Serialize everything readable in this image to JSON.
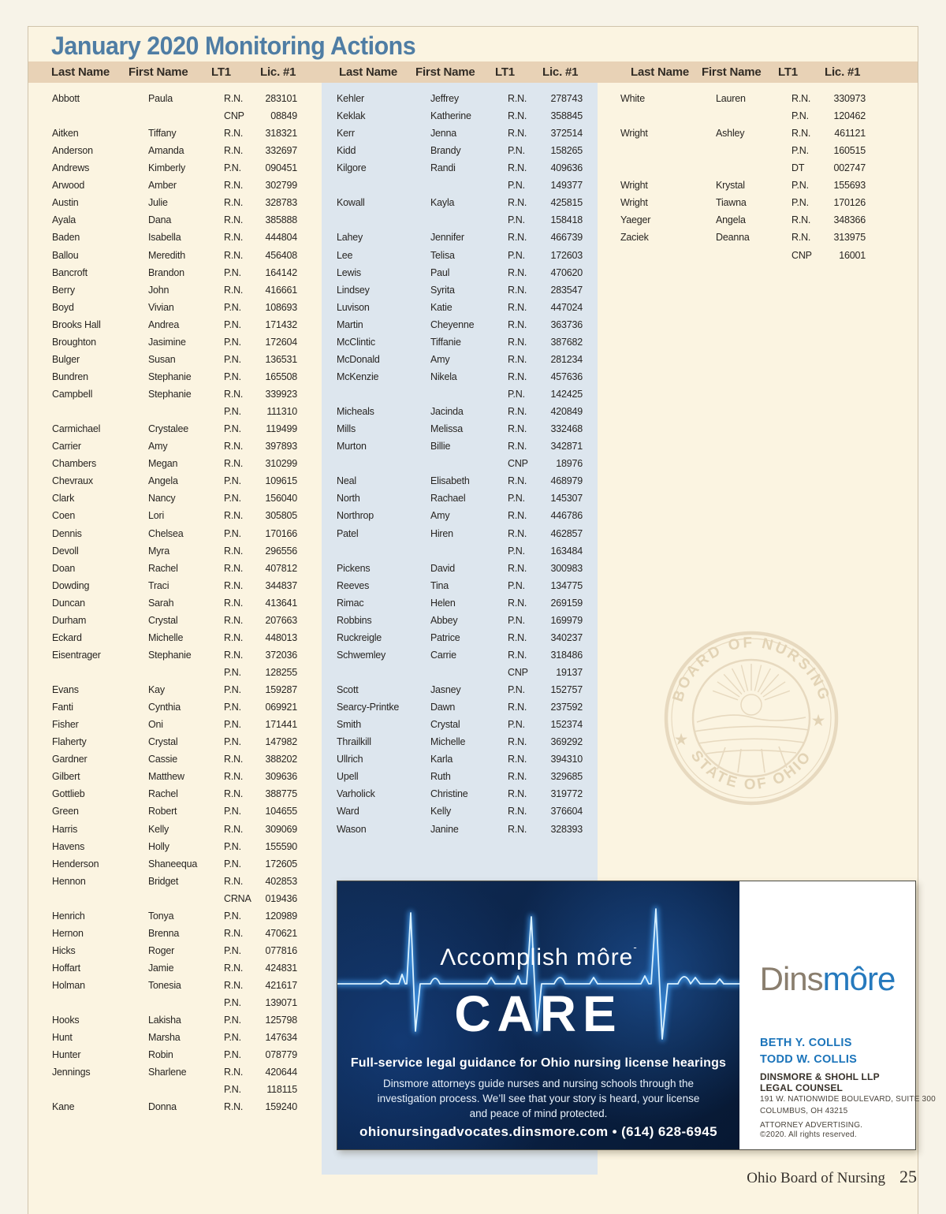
{
  "page": {
    "title": "January 2020 Monitoring Actions",
    "footer": {
      "label": "Ohio Board of Nursing",
      "page_number": "25"
    }
  },
  "colors": {
    "title_blue": "#4f7da4",
    "header_band_tan": "#e8d2b6",
    "page_cream": "#fbf4e1",
    "column2_panel_blue": "#dde6ee",
    "ad_navy": "#0a2145",
    "dinsmore_logo_taupe": "#8a7e6e",
    "dinsmore_logo_blue": "#2579bd",
    "attorney_name_blue": "#1b74ba"
  },
  "table": {
    "headers": [
      "Last Name",
      "First Name",
      "LT1",
      "Lic. #1"
    ],
    "columns": [
      [
        [
          "Abbott",
          "Paula",
          "R.N.",
          "283101"
        ],
        [
          "",
          "",
          "CNP",
          "08849"
        ],
        [
          "Aitken",
          "Tiffany",
          "R.N.",
          "318321"
        ],
        [
          "Anderson",
          "Amanda",
          "R.N.",
          "332697"
        ],
        [
          "Andrews",
          "Kimberly",
          "P.N.",
          "090451"
        ],
        [
          "Arwood",
          "Amber",
          "R.N.",
          "302799"
        ],
        [
          "Austin",
          "Julie",
          "R.N.",
          "328783"
        ],
        [
          "Ayala",
          "Dana",
          "R.N.",
          "385888"
        ],
        [
          "Baden",
          "Isabella",
          "R.N.",
          "444804"
        ],
        [
          "Ballou",
          "Meredith",
          "R.N.",
          "456408"
        ],
        [
          "Bancroft",
          "Brandon",
          "P.N.",
          "164142"
        ],
        [
          "Berry",
          "John",
          "R.N.",
          "416661"
        ],
        [
          "Boyd",
          "Vivian",
          "P.N.",
          "108693"
        ],
        [
          "Brooks Hall",
          "Andrea",
          "P.N.",
          "171432"
        ],
        [
          "Broughton",
          "Jasimine",
          "P.N.",
          "172604"
        ],
        [
          "Bulger",
          "Susan",
          "P.N.",
          "136531"
        ],
        [
          "Bundren",
          "Stephanie",
          "P.N.",
          "165508"
        ],
        [
          "Campbell",
          "Stephanie",
          "R.N.",
          "339923"
        ],
        [
          "",
          "",
          "P.N.",
          "111310"
        ],
        [
          "Carmichael",
          "Crystalee",
          "P.N.",
          "119499"
        ],
        [
          "Carrier",
          "Amy",
          "R.N.",
          "397893"
        ],
        [
          "Chambers",
          "Megan",
          "R.N.",
          "310299"
        ],
        [
          "Chevraux",
          "Angela",
          "P.N.",
          "109615"
        ],
        [
          "Clark",
          "Nancy",
          "P.N.",
          "156040"
        ],
        [
          "Coen",
          "Lori",
          "R.N.",
          "305805"
        ],
        [
          "Dennis",
          "Chelsea",
          "P.N.",
          "170166"
        ],
        [
          "Devoll",
          "Myra",
          "R.N.",
          "296556"
        ],
        [
          "Doan",
          "Rachel",
          "R.N.",
          "407812"
        ],
        [
          "Dowding",
          "Traci",
          "R.N.",
          "344837"
        ],
        [
          "Duncan",
          "Sarah",
          "R.N.",
          "413641"
        ],
        [
          "Durham",
          "Crystal",
          "R.N.",
          "207663"
        ],
        [
          "Eckard",
          "Michelle",
          "R.N.",
          "448013"
        ],
        [
          "Eisentrager",
          "Stephanie",
          "R.N.",
          "372036"
        ],
        [
          "",
          "",
          "P.N.",
          "128255"
        ],
        [
          "Evans",
          "Kay",
          "P.N.",
          "159287"
        ],
        [
          "Fanti",
          "Cynthia",
          "P.N.",
          "069921"
        ],
        [
          "Fisher",
          "Oni",
          "P.N.",
          "171441"
        ],
        [
          "Flaherty",
          "Crystal",
          "P.N.",
          "147982"
        ],
        [
          "Gardner",
          "Cassie",
          "R.N.",
          "388202"
        ],
        [
          "Gilbert",
          "Matthew",
          "R.N.",
          "309636"
        ],
        [
          "Gottlieb",
          "Rachel",
          "R.N.",
          "388775"
        ],
        [
          "Green",
          "Robert",
          "P.N.",
          "104655"
        ],
        [
          "Harris",
          "Kelly",
          "R.N.",
          "309069"
        ],
        [
          "Havens",
          "Holly",
          "P.N.",
          "155590"
        ],
        [
          "Henderson",
          "Shaneequa",
          "P.N.",
          "172605"
        ],
        [
          "Hennon",
          "Bridget",
          "R.N.",
          "402853"
        ],
        [
          "",
          "",
          "CRNA",
          "019436"
        ],
        [
          "Henrich",
          "Tonya",
          "P.N.",
          "120989"
        ],
        [
          "Hernon",
          "Brenna",
          "R.N.",
          "470621"
        ],
        [
          "Hicks",
          "Roger",
          "P.N.",
          "077816"
        ],
        [
          "Hoffart",
          "Jamie",
          "R.N.",
          "424831"
        ],
        [
          "Holman",
          "Tonesia",
          "R.N.",
          "421617"
        ],
        [
          "",
          "",
          "P.N.",
          "139071"
        ],
        [
          "Hooks",
          "Lakisha",
          "P.N.",
          "125798"
        ],
        [
          "Hunt",
          "Marsha",
          "P.N.",
          "147634"
        ],
        [
          "Hunter",
          "Robin",
          "P.N.",
          "078779"
        ],
        [
          "Jennings",
          "Sharlene",
          "R.N.",
          "420644"
        ],
        [
          "",
          "",
          "P.N.",
          "118115"
        ],
        [
          "Kane",
          "Donna",
          "R.N.",
          "159240"
        ]
      ],
      [
        [
          "Kehler",
          "Jeffrey",
          "R.N.",
          "278743"
        ],
        [
          "Keklak",
          "Katherine",
          "R.N.",
          "358845"
        ],
        [
          "Kerr",
          "Jenna",
          "R.N.",
          "372514"
        ],
        [
          "Kidd",
          "Brandy",
          "P.N.",
          "158265"
        ],
        [
          "Kilgore",
          "Randi",
          "R.N.",
          "409636"
        ],
        [
          "",
          "",
          "P.N.",
          "149377"
        ],
        [
          "Kowall",
          "Kayla",
          "R.N.",
          "425815"
        ],
        [
          "",
          "",
          "P.N.",
          "158418"
        ],
        [
          "Lahey",
          "Jennifer",
          "R.N.",
          "466739"
        ],
        [
          "Lee",
          "Telisa",
          "P.N.",
          "172603"
        ],
        [
          "Lewis",
          "Paul",
          "R.N.",
          "470620"
        ],
        [
          "Lindsey",
          "Syrita",
          "R.N.",
          "283547"
        ],
        [
          "Luvison",
          "Katie",
          "R.N.",
          "447024"
        ],
        [
          "Martin",
          "Cheyenne",
          "R.N.",
          "363736"
        ],
        [
          "McClintic",
          "Tiffanie",
          "R.N.",
          "387682"
        ],
        [
          "McDonald",
          "Amy",
          "R.N.",
          "281234"
        ],
        [
          "McKenzie",
          "Nikela",
          "R.N.",
          "457636"
        ],
        [
          "",
          "",
          "P.N.",
          "142425"
        ],
        [
          "Micheals",
          "Jacinda",
          "R.N.",
          "420849"
        ],
        [
          "Mills",
          "Melissa",
          "R.N.",
          "332468"
        ],
        [
          "Murton",
          "Billie",
          "R.N.",
          "342871"
        ],
        [
          "",
          "",
          "CNP",
          "18976"
        ],
        [
          "Neal",
          "Elisabeth",
          "R.N.",
          "468979"
        ],
        [
          "North",
          "Rachael",
          "P.N.",
          "145307"
        ],
        [
          "Northrop",
          "Amy",
          "R.N.",
          "446786"
        ],
        [
          "Patel",
          "Hiren",
          "R.N.",
          "462857"
        ],
        [
          "",
          "",
          "P.N.",
          "163484"
        ],
        [
          "Pickens",
          "David",
          "R.N.",
          "300983"
        ],
        [
          "Reeves",
          "Tina",
          "P.N.",
          "134775"
        ],
        [
          "Rimac",
          "Helen",
          "R.N.",
          "269159"
        ],
        [
          "Robbins",
          "Abbey",
          "P.N.",
          "169979"
        ],
        [
          "Ruckreigle",
          "Patrice",
          "R.N.",
          "340237"
        ],
        [
          "Schwemley",
          "Carrie",
          "R.N.",
          "318486"
        ],
        [
          "",
          "",
          "CNP",
          "19137"
        ],
        [
          "Scott",
          "Jasney",
          "P.N.",
          "152757"
        ],
        [
          "Searcy-Printke",
          "Dawn",
          "R.N.",
          "237592"
        ],
        [
          "Smith",
          "Crystal",
          "P.N.",
          "152374"
        ],
        [
          "Thrailkill",
          "Michelle",
          "R.N.",
          "369292"
        ],
        [
          "Ullrich",
          "Karla",
          "R.N.",
          "394310"
        ],
        [
          "Upell",
          "Ruth",
          "R.N.",
          "329685"
        ],
        [
          "Varholick",
          "Christine",
          "R.N.",
          "319772"
        ],
        [
          "Ward",
          "Kelly",
          "R.N.",
          "376604"
        ],
        [
          "Wason",
          "Janine",
          "R.N.",
          "328393"
        ]
      ],
      [
        [
          "White",
          "Lauren",
          "R.N.",
          "330973"
        ],
        [
          "",
          "",
          "P.N.",
          "120462"
        ],
        [
          "Wright",
          "Ashley",
          "R.N.",
          "461121"
        ],
        [
          "",
          "",
          "P.N.",
          "160515"
        ],
        [
          "",
          "",
          "DT",
          "002747"
        ],
        [
          "Wright",
          "Krystal",
          "P.N.",
          "155693"
        ],
        [
          "Wright",
          "Tiawna",
          "P.N.",
          "170126"
        ],
        [
          "Yaeger",
          "Angela",
          "R.N.",
          "348366"
        ],
        [
          "Zaciek",
          "Deanna",
          "R.N.",
          "313975"
        ],
        [
          "",
          "",
          "CNP",
          "16001"
        ]
      ]
    ]
  },
  "seal": {
    "top_text": "BOARD OF NURSING",
    "bottom_text": "STATE OF OHIO"
  },
  "ad": {
    "tagline_a": "Λ",
    "tagline_rest": "ccomplish môre",
    "tagline_mark": "-",
    "headline": "CARE",
    "subhead": "Full-service legal guidance for Ohio nursing license hearings",
    "body_lines": [
      "Dinsmore attorneys guide nurses and nursing schools through the",
      "investigation process. We’ll see that your story is heard, your license",
      "and peace of mind protected."
    ],
    "contact": "ohionursingadvocates.dinsmore.com • (614) 628-6945",
    "logo_part1": "Dins",
    "logo_part2": "môre",
    "attorneys": [
      "BETH Y. COLLIS",
      "TODD W. COLLIS"
    ],
    "firm_lines": [
      "DINSMORE & SHOHL LLP",
      "LEGAL COUNSEL"
    ],
    "address_lines": [
      "191 W. NATIONWIDE BOULEVARD, SUITE 300",
      "COLUMBUS, OH 43215"
    ],
    "legal_lines": [
      "ATTORNEY ADVERTISING.",
      "©2020. All rights reserved."
    ]
  }
}
